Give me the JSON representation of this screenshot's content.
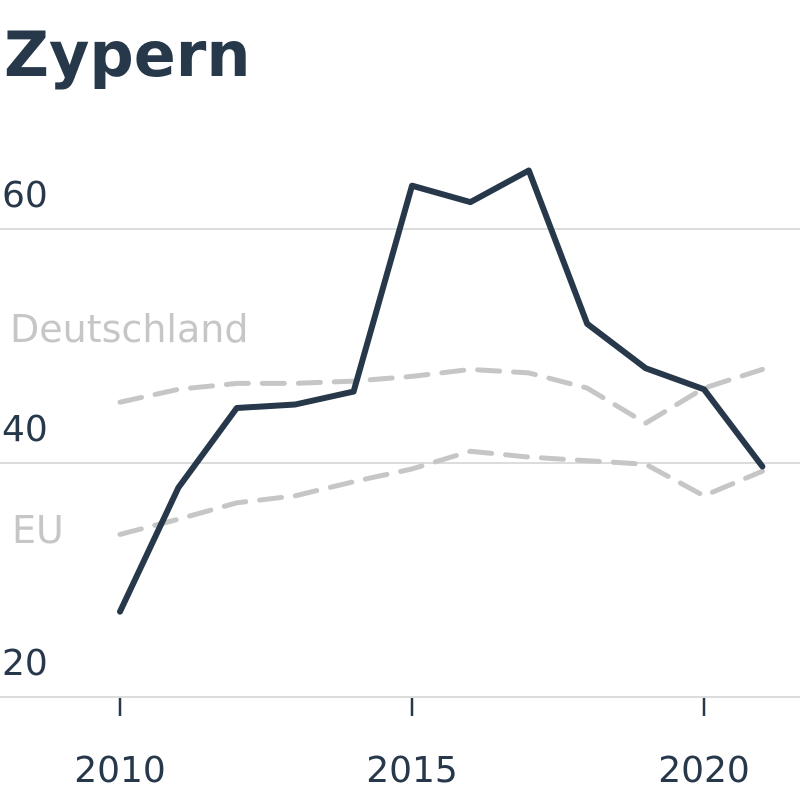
{
  "chart_data": {
    "type": "line",
    "title": "Zypern",
    "x": [
      2010,
      2011,
      2012,
      2013,
      2014,
      2015,
      2016,
      2017,
      2018,
      2019,
      2020,
      2021
    ],
    "xticks": [
      2010,
      2015,
      2020
    ],
    "xlim": [
      2009,
      2022
    ],
    "yticks": [
      20,
      40,
      60
    ],
    "ylim": [
      19,
      65
    ],
    "grid": true,
    "series": [
      {
        "name": "",
        "style": "solid",
        "color": "#26384a",
        "values": [
          27.3,
          37.9,
          44.7,
          45.0,
          46.1,
          63.7,
          62.3,
          65.0,
          51.9,
          48.1,
          46.3,
          39.7
        ]
      },
      {
        "name": "Deutschland",
        "style": "dashed",
        "color": "#c6c6c6",
        "values": [
          45.2,
          46.3,
          46.8,
          46.8,
          47.0,
          47.4,
          48.0,
          47.7,
          46.4,
          43.4,
          46.4,
          48.0
        ]
      },
      {
        "name": "EU",
        "style": "dashed",
        "color": "#c6c6c6",
        "values": [
          33.9,
          35.2,
          36.6,
          37.2,
          38.4,
          39.5,
          41.0,
          40.5,
          40.2,
          39.9,
          37.2,
          39.3
        ]
      }
    ]
  }
}
